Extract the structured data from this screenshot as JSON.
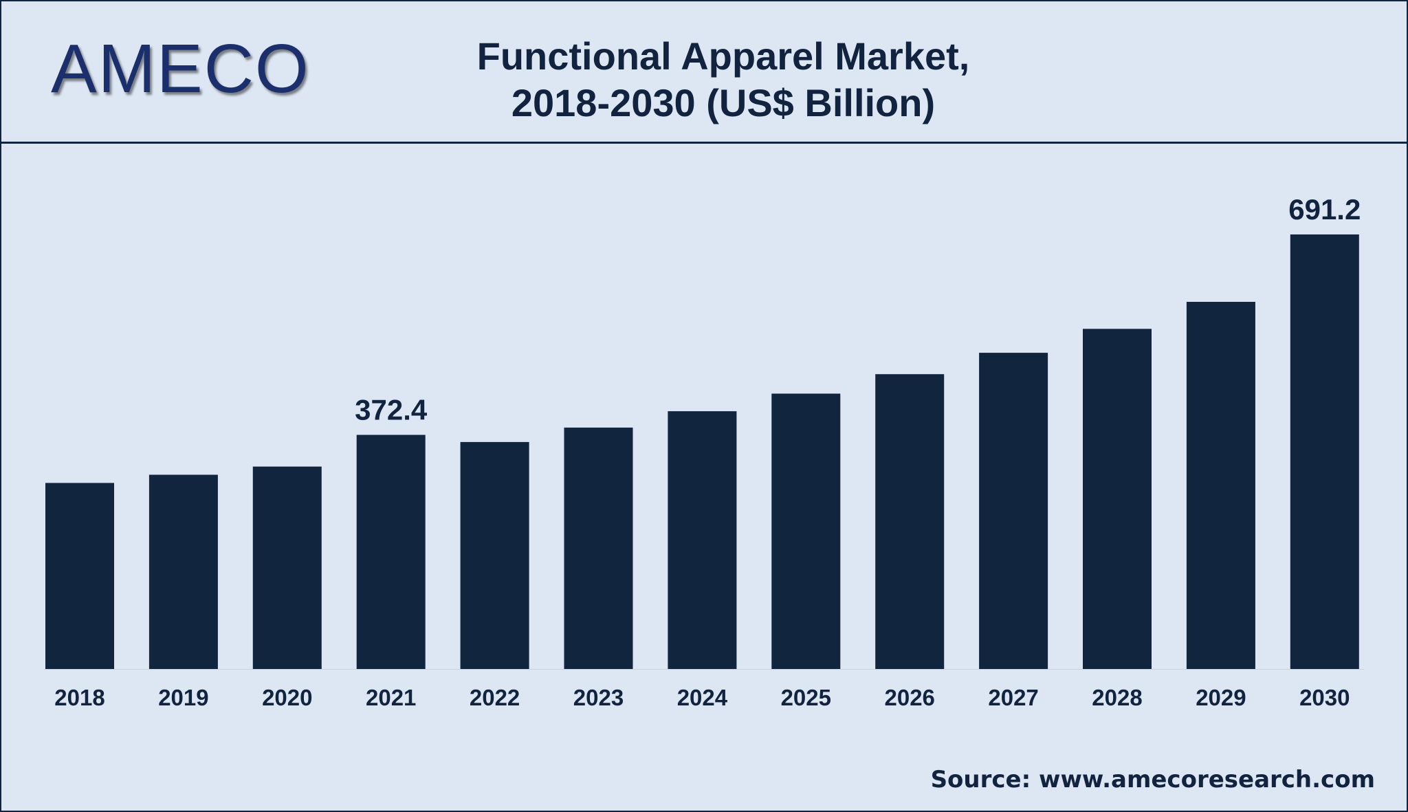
{
  "brand": {
    "logo_text": "AMECO"
  },
  "header": {
    "title_line1": "Functional Apparel Market,",
    "title_line2": "2018-2030 (US$ Billion)"
  },
  "source": {
    "text": "Source: www.amecoresearch.com"
  },
  "colors": {
    "bar": "#12253f",
    "background": "#dde6f3",
    "text": "#12233f",
    "logo": "#1a2f6b"
  },
  "chart_data": {
    "type": "bar",
    "categories": [
      "2018",
      "2019",
      "2020",
      "2021",
      "2022",
      "2023",
      "2024",
      "2025",
      "2026",
      "2027",
      "2028",
      "2029",
      "2030"
    ],
    "values": [
      296,
      309,
      322,
      372.4,
      361,
      384,
      410,
      438,
      469,
      503,
      541,
      584,
      691.2
    ],
    "data_labels": {
      "3": "372.4",
      "12": "691.2"
    },
    "title": "Functional Apparel Market, 2018-2030 (US$ Billion)",
    "xlabel": "",
    "ylabel": "",
    "ylim": [
      0,
      700
    ],
    "grid": false,
    "legend": "none"
  }
}
